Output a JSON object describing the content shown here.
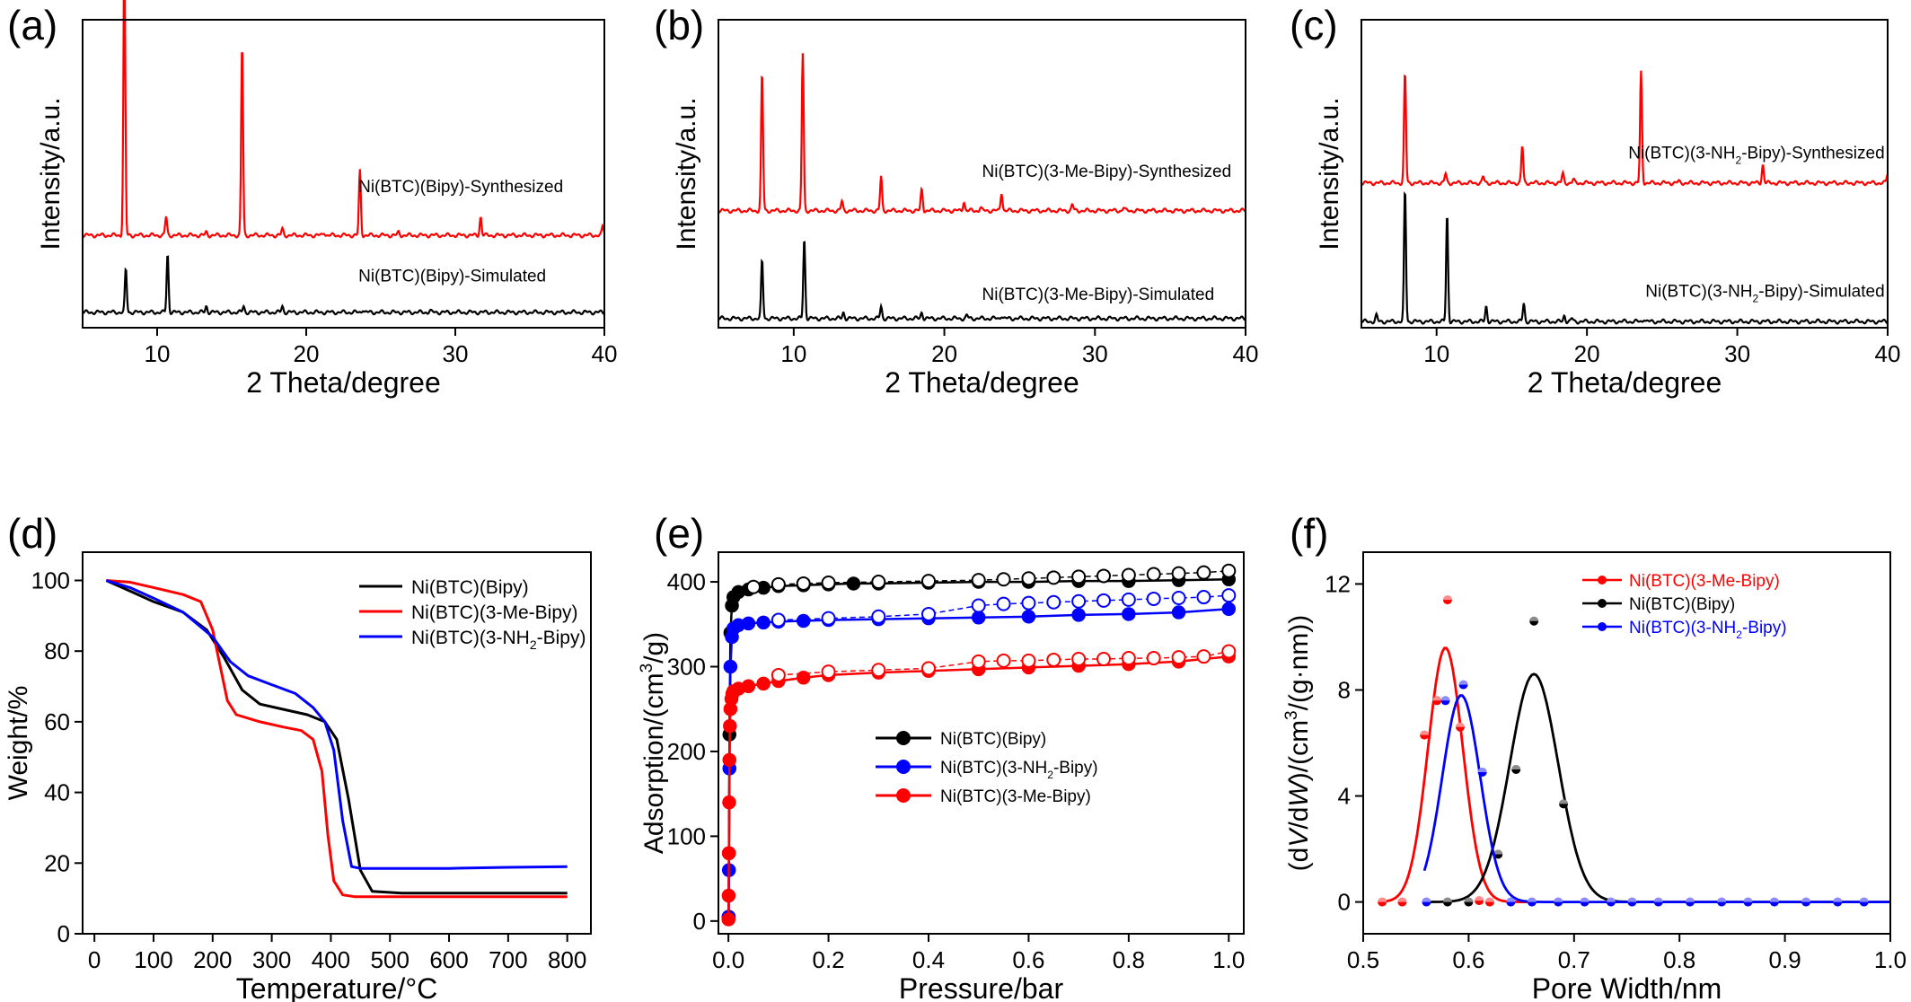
{
  "chart_data": [
    {
      "panel": "(a)",
      "type": "line",
      "xlabel": "2 Theta/degree",
      "ylabel": "Intensity/a.u.",
      "xlim": [
        5,
        40
      ],
      "ylim": [
        0,
        1
      ],
      "xticks": [
        10,
        20,
        30,
        40
      ],
      "yticks": [],
      "series": [
        {
          "name": "Ni(BTC)(Bipy)-Synthesized",
          "color": "#ff0000",
          "baseline": 0.3,
          "label_pos": [
            23.5,
            0.44
          ],
          "peaks": [
            [
              7.8,
              0.93
            ],
            [
              10.6,
              0.06
            ],
            [
              13.3,
              0.01
            ],
            [
              15.7,
              0.62
            ],
            [
              18.4,
              0.02
            ],
            [
              21.2,
              0.01
            ],
            [
              23.6,
              0.21
            ],
            [
              26.2,
              0.01
            ],
            [
              31.7,
              0.06
            ],
            [
              39.9,
              0.03
            ]
          ]
        },
        {
          "name": "Ni(BTC)(Bipy)-Simulated",
          "color": "#000000",
          "baseline": 0.05,
          "label_pos": [
            23.5,
            0.15
          ],
          "peaks": [
            [
              7.9,
              0.14
            ],
            [
              10.7,
              0.19
            ],
            [
              13.3,
              0.02
            ],
            [
              15.8,
              0.02
            ],
            [
              18.4,
              0.02
            ],
            [
              23.8,
              0.01
            ],
            [
              28.3,
              0.005
            ]
          ]
        }
      ]
    },
    {
      "panel": "(b)",
      "type": "line",
      "xlabel": "2 Theta/degree",
      "ylabel": "Intensity/a.u.",
      "xlim": [
        5,
        40
      ],
      "ylim": [
        0,
        1
      ],
      "xticks": [
        10,
        20,
        30,
        40
      ],
      "yticks": [],
      "series": [
        {
          "name": "Ni(BTC)(3-Me-Bipy)-Synthesized",
          "color": "#ff0000",
          "baseline": 0.38,
          "label_pos": [
            22.5,
            0.49
          ],
          "peaks": [
            [
              7.9,
              0.45
            ],
            [
              10.6,
              0.51
            ],
            [
              13.2,
              0.03
            ],
            [
              15.8,
              0.11
            ],
            [
              18.5,
              0.07
            ],
            [
              21.3,
              0.03
            ],
            [
              22.4,
              0.01
            ],
            [
              23.8,
              0.06
            ],
            [
              28.5,
              0.02
            ],
            [
              31.9,
              0.01
            ]
          ]
        },
        {
          "name": "Ni(BTC)(3-Me-Bipy)-Simulated",
          "color": "#000000",
          "baseline": 0.03,
          "label_pos": [
            22.5,
            0.09
          ],
          "peaks": [
            [
              7.9,
              0.19
            ],
            [
              10.7,
              0.26
            ],
            [
              13.3,
              0.02
            ],
            [
              15.8,
              0.04
            ],
            [
              18.5,
              0.02
            ],
            [
              21.5,
              0.01
            ],
            [
              23.8,
              0.01
            ]
          ]
        }
      ]
    },
    {
      "panel": "(c)",
      "type": "line",
      "xlabel": "2 Theta/degree",
      "ylabel": "Intensity/a.u.",
      "xlim": [
        5,
        40
      ],
      "ylim": [
        0,
        1
      ],
      "xticks": [
        10,
        20,
        30,
        40
      ],
      "yticks": [],
      "series": [
        {
          "name": "Ni(BTC)(3-NH2-Bipy)-Synthesized",
          "color": "#ff0000",
          "baseline": 0.47,
          "label_pos": [
            39.8,
            0.55
          ],
          "peaks": [
            [
              7.9,
              0.36
            ],
            [
              10.6,
              0.03
            ],
            [
              13.1,
              0.02
            ],
            [
              15.7,
              0.12
            ],
            [
              18.4,
              0.03
            ],
            [
              19.1,
              0.01
            ],
            [
              23.6,
              0.36
            ],
            [
              26.1,
              0.005
            ],
            [
              31.7,
              0.06
            ],
            [
              40.0,
              0.03
            ]
          ]
        },
        {
          "name": "Ni(BTC)(3-NH2-Bipy)-Simulated",
          "color": "#000000",
          "baseline": 0.02,
          "label_pos": [
            39.8,
            0.1
          ],
          "peaks": [
            [
              6.0,
              0.02
            ],
            [
              7.9,
              0.43
            ],
            [
              10.7,
              0.35
            ],
            [
              13.3,
              0.05
            ],
            [
              15.8,
              0.06
            ],
            [
              18.5,
              0.02
            ],
            [
              19.0,
              0.01
            ],
            [
              23.8,
              0.01
            ]
          ]
        }
      ]
    },
    {
      "panel": "(d)",
      "type": "line",
      "xlabel": "Temperature/°C",
      "ylabel": "Weight/%",
      "xlim": [
        -20,
        840
      ],
      "ylim": [
        0,
        108
      ],
      "xticks": [
        0,
        100,
        200,
        300,
        400,
        500,
        600,
        700,
        800
      ],
      "yticks": [
        0,
        20,
        40,
        60,
        80,
        100
      ],
      "legend": "top-right",
      "series": [
        {
          "name": "Ni(BTC)(Bipy)",
          "color": "#000000",
          "x": [
            20,
            60,
            100,
            150,
            190,
            220,
            250,
            280,
            320,
            360,
            390,
            410,
            430,
            450,
            470,
            520,
            600,
            700,
            800
          ],
          "y": [
            100,
            97,
            94,
            91,
            86,
            78,
            69,
            65,
            63.5,
            62,
            60,
            55,
            38,
            18,
            12,
            11.5,
            11.5,
            11.5,
            11.5
          ]
        },
        {
          "name": "Ni(BTC)(3-Me-Bipy)",
          "color": "#ff0000",
          "x": [
            20,
            60,
            100,
            150,
            180,
            200,
            225,
            240,
            280,
            320,
            350,
            370,
            385,
            395,
            405,
            420,
            440,
            500,
            600,
            700,
            800
          ],
          "y": [
            100,
            99.5,
            98,
            96,
            94,
            86,
            66,
            62,
            60,
            58.5,
            57.5,
            55,
            46,
            28,
            15,
            11,
            10.5,
            10.5,
            10.5,
            10.5,
            10.5
          ]
        },
        {
          "name": "Ni(BTC)(3-NH2-Bipy)",
          "color": "#0000ff",
          "x": [
            20,
            60,
            100,
            150,
            200,
            230,
            260,
            300,
            340,
            370,
            390,
            405,
            420,
            435,
            450,
            500,
            600,
            700,
            800
          ],
          "y": [
            100,
            98,
            95,
            91,
            84,
            77,
            73,
            70.5,
            68,
            64,
            60,
            52,
            32,
            19,
            18.5,
            18.5,
            18.5,
            18.8,
            19
          ]
        }
      ],
      "legend_labels": [
        {
          "prefix": "Ni(BTC)(Bipy)",
          "sub": "",
          "suffix": ""
        },
        {
          "prefix": "Ni(BTC)(3-Me-Bipy)",
          "sub": "",
          "suffix": ""
        },
        {
          "prefix": "Ni(BTC)(3-NH",
          "sub": "2",
          "suffix": "-Bipy)"
        }
      ]
    },
    {
      "panel": "(e)",
      "type": "scatter",
      "xlabel": "Pressure/bar",
      "ylabel": "Adsorption/(cm3/g)",
      "xlim": [
        -0.02,
        1.03
      ],
      "ylim": [
        -15,
        435
      ],
      "xticks": [
        0.0,
        0.2,
        0.4,
        0.6,
        0.8,
        1.0
      ],
      "yticks": [
        0,
        100,
        200,
        300,
        400
      ],
      "legend": "center",
      "series": [
        {
          "name": "Ni(BTC)(Bipy)",
          "color": "#000000",
          "adsorption": {
            "x": [
              0.0005,
              0.001,
              0.002,
              0.004,
              0.007,
              0.01,
              0.02,
              0.04,
              0.07,
              0.1,
              0.15,
              0.2,
              0.25,
              0.3,
              0.4,
              0.5,
              0.6,
              0.7,
              0.8,
              0.9,
              1.0
            ],
            "y": [
              5,
              80,
              220,
              340,
              372,
              382,
              388,
              391,
              393,
              395,
              396,
              397,
              398,
              398,
              399,
              400,
              400,
              401,
              401,
              402,
              403
            ]
          },
          "desorption": {
            "x": [
              0.05,
              0.1,
              0.15,
              0.2,
              0.3,
              0.4,
              0.5,
              0.55,
              0.6,
              0.65,
              0.7,
              0.75,
              0.8,
              0.85,
              0.9,
              0.95,
              1.0
            ],
            "y": [
              394,
              397,
              398,
              399,
              400,
              401,
              402,
              403,
              404,
              405,
              406,
              407,
              408,
              409,
              410,
              411,
              413
            ]
          }
        },
        {
          "name": "Ni(BTC)(3-NH2-Bipy)",
          "color": "#0000ff",
          "adsorption": {
            "x": [
              0.0005,
              0.001,
              0.002,
              0.004,
              0.007,
              0.01,
              0.02,
              0.04,
              0.07,
              0.1,
              0.15,
              0.2,
              0.3,
              0.4,
              0.5,
              0.6,
              0.7,
              0.8,
              0.9,
              1.0
            ],
            "y": [
              5,
              60,
              180,
              300,
              335,
              345,
              349,
              351,
              352,
              353,
              354,
              355,
              356,
              357,
              358,
              359,
              361,
              362,
              364,
              368
            ]
          },
          "desorption": {
            "x": [
              0.1,
              0.2,
              0.3,
              0.4,
              0.5,
              0.55,
              0.6,
              0.65,
              0.7,
              0.75,
              0.8,
              0.85,
              0.9,
              0.95,
              1.0
            ],
            "y": [
              355,
              357,
              359,
              362,
              372,
              374,
              375,
              376,
              377,
              378,
              379,
              380,
              381,
              382,
              384
            ]
          }
        },
        {
          "name": "Ni(BTC)(3-Me-Bipy)",
          "color": "#ff0000",
          "adsorption": {
            "x": [
              0.0002,
              0.0005,
              0.001,
              0.0015,
              0.002,
              0.003,
              0.004,
              0.006,
              0.008,
              0.01,
              0.02,
              0.04,
              0.07,
              0.1,
              0.15,
              0.2,
              0.3,
              0.4,
              0.5,
              0.6,
              0.7,
              0.8,
              0.9,
              1.0
            ],
            "y": [
              2,
              30,
              80,
              140,
              190,
              230,
              250,
              262,
              268,
              271,
              274,
              277,
              280,
              283,
              287,
              290,
              293,
              295,
              297,
              299,
              301,
              303,
              306,
              312
            ]
          },
          "desorption": {
            "x": [
              0.1,
              0.2,
              0.3,
              0.4,
              0.5,
              0.55,
              0.6,
              0.65,
              0.7,
              0.75,
              0.8,
              0.85,
              0.9,
              0.95,
              1.0
            ],
            "y": [
              290,
              294,
              296,
              298,
              306,
              307,
              307,
              308,
              309,
              309,
              310,
              310,
              311,
              312,
              318
            ]
          }
        }
      ],
      "legend_labels": [
        {
          "prefix": "Ni(BTC)(Bipy)",
          "sub": "",
          "suffix": ""
        },
        {
          "prefix": "Ni(BTC)(3-NH",
          "sub": "2",
          "suffix": "-Bipy)"
        },
        {
          "prefix": "Ni(BTC)(3-Me-Bipy)",
          "sub": "",
          "suffix": ""
        }
      ]
    },
    {
      "panel": "(f)",
      "type": "scatter",
      "xlabel": "Pore Width/nm",
      "ylabel": "(dV/dW)/(cm3/(g·nm))",
      "xlim": [
        0.5,
        1.0
      ],
      "ylim": [
        -1.2,
        13.2
      ],
      "xticks": [
        0.5,
        0.6,
        0.7,
        0.8,
        0.9,
        1.0
      ],
      "yticks": [
        0,
        4,
        8,
        12
      ],
      "legend": "top-right",
      "series": [
        {
          "name": "Ni(BTC)(3-Me-Bipy)",
          "color": "#ff0000",
          "fit": {
            "mu": 0.578,
            "sigma": 0.0165,
            "amp": 9.6,
            "xmin": 0.515,
            "xmax": 0.66
          },
          "x": [
            0.518,
            0.537,
            0.558,
            0.57,
            0.58,
            0.592,
            0.61,
            0.62
          ],
          "y": [
            0,
            0,
            6.3,
            7.6,
            11.4,
            6.6,
            0.05,
            0
          ]
        },
        {
          "name": "Ni(BTC)(Bipy)",
          "color": "#000000",
          "fit": {
            "mu": 0.662,
            "sigma": 0.023,
            "amp": 8.6,
            "xmin": 0.56,
            "xmax": 1.0
          },
          "x": [
            0.58,
            0.6,
            0.628,
            0.645,
            0.662,
            0.69
          ],
          "y": [
            0,
            0,
            1.8,
            5.0,
            10.6,
            3.7
          ]
        },
        {
          "name": "Ni(BTC)(3-NH2-Bipy)",
          "color": "#0000ff",
          "fit": {
            "mu": 0.593,
            "sigma": 0.018,
            "amp": 7.8,
            "xmin": 0.558,
            "xmax": 1.0
          },
          "x": [
            0.56,
            0.578,
            0.595,
            0.613,
            0.64,
            0.66,
            0.685,
            0.71,
            0.735,
            0.755,
            0.78,
            0.81,
            0.84,
            0.865,
            0.89,
            0.92,
            0.95,
            0.975
          ],
          "y": [
            0,
            7.6,
            8.2,
            4.9,
            0,
            0,
            0,
            0,
            0,
            0,
            0,
            0,
            0,
            0,
            0,
            0,
            0,
            0
          ]
        }
      ],
      "legend_labels": [
        {
          "prefix": "Ni(BTC)(3-Me-Bipy)",
          "sub": "",
          "suffix": ""
        },
        {
          "prefix": "Ni(BTC)(Bipy)",
          "sub": "",
          "suffix": ""
        },
        {
          "prefix": "Ni(BTC)(3-NH",
          "sub": "2",
          "suffix": "-Bipy)"
        }
      ]
    }
  ]
}
